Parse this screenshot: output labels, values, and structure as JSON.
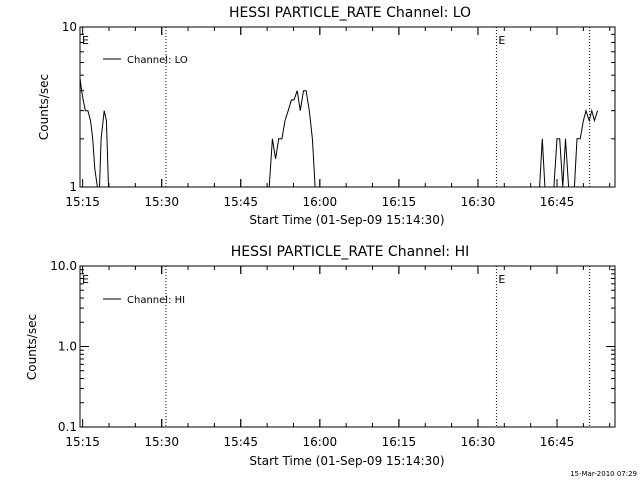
{
  "chart_data": [
    {
      "type": "line",
      "title": "HESSI PARTICLE_RATE Channel: LO",
      "xlabel": "Start Time (01-Sep-09 15:14:30)",
      "ylabel": "Counts/sec",
      "x_ticks": [
        "15:15",
        "15:30",
        "15:45",
        "16:00",
        "16:15",
        "16:30",
        "16:45"
      ],
      "x_tick_minutes": [
        0.5,
        15.5,
        30.5,
        45.5,
        60.5,
        75.5,
        90.5
      ],
      "xlim_minutes": [
        0,
        101.5
      ],
      "y_scale": "log",
      "ylim": [
        1,
        10
      ],
      "y_ticks": [
        "1",
        "10"
      ],
      "y_tick_values": [
        1,
        10
      ],
      "grid": false,
      "legend_position": "top-left",
      "series": [
        {
          "name": "Channel: LO",
          "x_minutes": [
            0,
            0.3,
            0.6,
            1.0,
            1.5,
            2.0,
            2.4,
            2.8,
            3.3,
            3.7,
            4.0,
            4.6,
            5.0,
            5.4,
            5.9,
            6.3,
            6.7,
            7.3,
            7.8,
            35.9,
            36.5,
            37.1,
            37.7,
            38.3,
            38.9,
            39.5,
            40.1,
            40.6,
            41.2,
            41.8,
            42.4,
            42.9,
            43.5,
            44.1,
            44.6,
            45.2,
            87.2,
            87.7,
            88.2,
            88.8,
            89.3,
            89.9,
            90.5,
            91.0,
            91.6,
            92.1,
            92.7,
            93.2,
            93.8,
            94.3,
            94.9,
            95.5,
            96.0,
            96.6,
            97.1,
            97.6,
            98.2
          ],
          "values": [
            4.8,
            4.0,
            3.5,
            3.0,
            3.0,
            2.6,
            2.0,
            1.3,
            1.0,
            1.0,
            2.0,
            3.0,
            2.6,
            1.0,
            1.0,
            1.0,
            1.0,
            1.0,
            1.0,
            1.0,
            2.0,
            1.5,
            2.0,
            2.0,
            2.6,
            3.0,
            3.5,
            3.5,
            4.0,
            3.0,
            4.0,
            4.0,
            3.0,
            2.0,
            1.0,
            1.0,
            1.0,
            2.0,
            1.0,
            1.0,
            1.0,
            1.0,
            2.0,
            2.0,
            1.0,
            2.0,
            1.0,
            1.0,
            1.0,
            2.0,
            2.0,
            2.6,
            3.0,
            2.6,
            3.0,
            2.6,
            3.0
          ]
        }
      ],
      "annotations": [
        {
          "text": "E",
          "x_minutes": 0,
          "line": false
        },
        {
          "text": "",
          "x_minutes": 16.3,
          "line": true
        },
        {
          "text": "E",
          "x_minutes": 79.0,
          "line": true
        },
        {
          "text": "",
          "x_minutes": 96.7,
          "line": true
        }
      ]
    },
    {
      "type": "line",
      "title": "HESSI PARTICLE_RATE Channel: HI",
      "xlabel": "Start Time (01-Sep-09 15:14:30)",
      "ylabel": "Counts/sec",
      "x_ticks": [
        "15:15",
        "15:30",
        "15:45",
        "16:00",
        "16:15",
        "16:30",
        "16:45"
      ],
      "x_tick_minutes": [
        0.5,
        15.5,
        30.5,
        45.5,
        60.5,
        75.5,
        90.5
      ],
      "xlim_minutes": [
        0,
        101.5
      ],
      "y_scale": "log",
      "ylim": [
        0.1,
        10
      ],
      "y_ticks": [
        "0.1",
        "1.0",
        "10.0"
      ],
      "y_tick_values": [
        0.1,
        1,
        10
      ],
      "grid": false,
      "legend_position": "top-left",
      "series": [
        {
          "name": "Channel: HI",
          "x_minutes": [],
          "values": []
        }
      ],
      "annotations": [
        {
          "text": "E",
          "x_minutes": 0,
          "line": false
        },
        {
          "text": "",
          "x_minutes": 16.3,
          "line": true
        },
        {
          "text": "E",
          "x_minutes": 79.0,
          "line": true
        },
        {
          "text": "",
          "x_minutes": 96.7,
          "line": true
        }
      ]
    }
  ],
  "footer": {
    "timestamp": "15-Mar-2010 07:29"
  }
}
